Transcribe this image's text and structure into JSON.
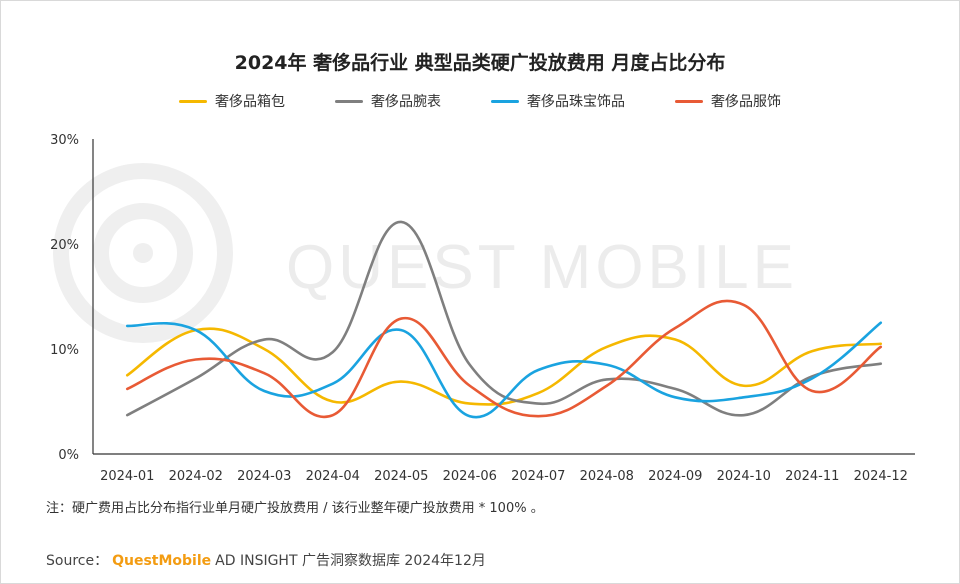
{
  "title": "2024年 奢侈品行业 典型品类硬广投放费用 月度占比分布",
  "note": "注：硬广费用占比分布指行业单月硬广投放费用 / 该行业整年硬广投放费用 * 100% 。",
  "source": {
    "label": "Source：",
    "brand": "QuestMobile",
    "rest": "AD INSIGHT 广告洞察数据库 2024年12月"
  },
  "watermark": "QUEST MOBILE",
  "chart_data": {
    "type": "line",
    "title": "2024年 奢侈品行业 典型品类硬广投放费用 月度占比分布",
    "categories": [
      "2024-01",
      "2024-02",
      "2024-03",
      "2024-04",
      "2024-05",
      "2024-06",
      "2024-07",
      "2024-08",
      "2024-09",
      "2024-10",
      "2024-11",
      "2024-12"
    ],
    "yticks": [
      "0%",
      "10%",
      "20%",
      "30%"
    ],
    "ylim": [
      0,
      30
    ],
    "unit": "%",
    "grid": false,
    "legend_position": "top",
    "series": [
      {
        "name": "奢侈品箱包",
        "color": "#f5b800",
        "values": [
          7.5,
          11.8,
          10.0,
          5.0,
          6.9,
          4.8,
          5.8,
          10.2,
          10.9,
          6.5,
          9.8,
          10.5
        ]
      },
      {
        "name": "奢侈品腕表",
        "color": "#7f7f7f",
        "values": [
          3.7,
          7.2,
          10.9,
          9.7,
          22.1,
          8.5,
          4.8,
          7.1,
          6.2,
          3.7,
          7.4,
          8.6
        ]
      },
      {
        "name": "奢侈品珠宝饰品",
        "color": "#1aa3e0",
        "values": [
          12.2,
          11.8,
          6.0,
          6.7,
          11.8,
          3.6,
          8.0,
          8.5,
          5.4,
          5.4,
          7.2,
          12.5
        ]
      },
      {
        "name": "奢侈品服饰",
        "color": "#e85a35",
        "values": [
          6.2,
          9.0,
          7.7,
          3.7,
          12.9,
          6.5,
          3.6,
          6.5,
          12.0,
          14.2,
          6.0,
          10.2
        ]
      }
    ]
  }
}
